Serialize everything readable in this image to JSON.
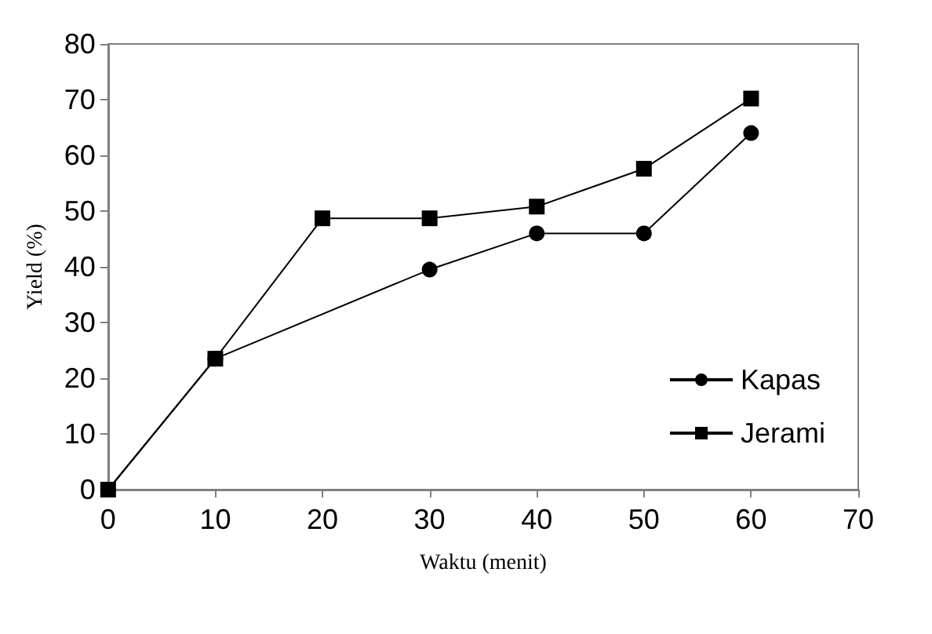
{
  "chart_data": {
    "type": "line",
    "xlabel": "Waktu (menit)",
    "ylabel": "Yield (%)",
    "xlim": [
      0,
      70
    ],
    "xticks": [
      0,
      10,
      20,
      30,
      40,
      50,
      60,
      70
    ],
    "ylim": [
      0,
      80
    ],
    "yticks": [
      0,
      10,
      20,
      30,
      40,
      50,
      60,
      70,
      80
    ],
    "series": [
      {
        "name": "Kapas",
        "color": "#000000",
        "marker": "circle",
        "x": [
          0,
          10,
          30,
          40,
          50,
          60
        ],
        "values": [
          0,
          23.5,
          39.5,
          46,
          46,
          64
        ]
      },
      {
        "name": "Jerami",
        "color": "#000000",
        "marker": "square",
        "x": [
          0,
          10,
          20,
          30,
          40,
          50,
          60
        ],
        "values": [
          0,
          23.5,
          48.7,
          48.7,
          50.8,
          57.6,
          70.2
        ]
      }
    ],
    "grid": false,
    "legend": "right",
    "line_style": "solid"
  }
}
